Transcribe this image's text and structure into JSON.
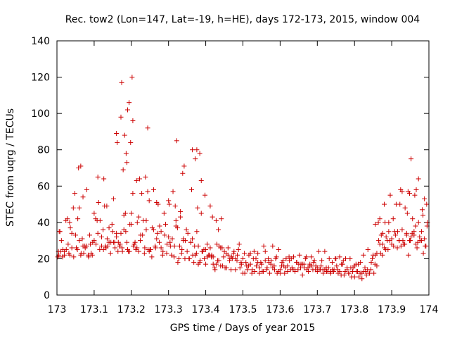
{
  "chart_data": {
    "type": "scatter",
    "title": "Rec. tow2 (Lon=147, Lat=-19, h=HE), days 172-173, 2015, window 004",
    "xlabel": "GPS time / Days of year 2015",
    "ylabel": "STEC from uqrg / TECUs",
    "xlim": [
      173,
      174
    ],
    "ylim": [
      0,
      140
    ],
    "xticks": [
      "173",
      "173.1",
      "173.2",
      "173.3",
      "173.4",
      "173.5",
      "173.6",
      "173.7",
      "173.8",
      "173.9",
      "174"
    ],
    "yticks": [
      "0",
      "20",
      "40",
      "60",
      "80",
      "100",
      "120",
      "140"
    ],
    "grid": false,
    "legend": "none",
    "marker": "plus",
    "color": "#cc0000",
    "x": [
      173.002,
      173.004,
      173.006,
      173.008,
      173.012,
      173.016,
      173.02,
      173.024,
      173.028,
      173.032,
      173.036,
      173.04,
      173.044,
      173.048,
      173.052,
      173.056,
      173.06,
      173.064,
      173.068,
      173.072,
      173.076,
      173.08,
      173.084,
      173.088,
      173.092,
      173.096,
      173.1,
      173.104,
      173.108,
      173.112,
      173.116,
      173.12,
      173.124,
      173.128,
      173.132,
      173.136,
      173.14,
      173.144,
      173.148,
      173.152,
      173.156,
      173.16,
      173.164,
      173.168,
      173.172,
      173.176,
      173.18,
      173.184,
      173.188,
      173.192,
      173.196,
      173.2,
      173.204,
      173.208,
      173.212,
      173.216,
      173.22,
      173.224,
      173.228,
      173.232,
      173.236,
      173.24,
      173.244,
      173.248,
      173.252,
      173.256,
      173.26,
      173.264,
      173.268,
      173.272,
      173.276,
      173.28,
      173.284,
      173.288,
      173.292,
      173.296,
      173.3,
      173.304,
      173.308,
      173.312,
      173.316,
      173.32,
      173.324,
      173.328,
      173.332,
      173.336,
      173.34,
      173.344,
      173.348,
      173.352,
      173.356,
      173.36,
      173.364,
      173.368,
      173.372,
      173.376,
      173.38,
      173.384,
      173.388,
      173.392,
      173.396,
      173.4,
      173.404,
      173.408,
      173.412,
      173.416,
      173.42,
      173.424,
      173.428,
      173.432,
      173.436,
      173.44,
      173.444,
      173.448,
      173.452,
      173.456,
      173.46,
      173.464,
      173.468,
      173.472,
      173.476,
      173.48,
      173.484,
      173.488,
      173.492,
      173.496,
      173.5,
      173.504,
      173.508,
      173.512,
      173.516,
      173.52,
      173.524,
      173.528,
      173.532,
      173.536,
      173.54,
      173.544,
      173.548,
      173.552,
      173.556,
      173.56,
      173.564,
      173.568,
      173.572,
      173.576,
      173.58,
      173.584,
      173.588,
      173.592,
      173.596,
      173.6,
      173.604,
      173.608,
      173.612,
      173.616,
      173.62,
      173.624,
      173.628,
      173.632,
      173.636,
      173.64,
      173.644,
      173.648,
      173.652,
      173.656,
      173.66,
      173.664,
      173.668,
      173.672,
      173.676,
      173.68,
      173.684,
      173.688,
      173.692,
      173.696,
      173.7,
      173.704,
      173.708,
      173.712,
      173.716,
      173.72,
      173.724,
      173.728,
      173.732,
      173.736,
      173.74,
      173.744,
      173.748,
      173.752,
      173.756,
      173.76,
      173.764,
      173.768,
      173.772,
      173.776,
      173.78,
      173.784,
      173.788,
      173.792,
      173.796,
      173.8,
      173.804,
      173.808,
      173.812,
      173.816,
      173.82,
      173.824,
      173.828,
      173.832,
      173.836,
      173.84,
      173.844,
      173.848,
      173.852,
      173.856,
      173.86,
      173.864,
      173.868,
      173.872,
      173.876,
      173.88,
      173.884,
      173.888,
      173.892,
      173.896,
      173.9,
      173.904,
      173.908,
      173.912,
      173.916,
      173.92,
      173.924,
      173.928,
      173.932,
      173.936,
      173.94,
      173.944,
      173.948,
      173.952,
      173.956,
      173.96,
      173.964,
      173.968,
      173.972,
      173.976,
      173.98,
      173.984,
      173.988,
      173.992,
      173.996,
      173.01,
      173.03,
      173.05,
      173.07,
      173.09,
      173.11,
      173.13,
      173.15,
      173.17,
      173.19,
      173.21,
      173.23,
      173.25,
      173.27,
      173.29,
      173.31,
      173.33,
      173.35,
      173.37,
      173.39,
      173.41,
      173.43,
      173.45,
      173.47,
      173.49,
      173.51,
      173.53,
      173.55,
      173.57,
      173.59,
      173.61,
      173.63,
      173.65,
      173.67,
      173.69,
      173.71,
      173.73,
      173.75,
      173.77,
      173.79,
      173.81,
      173.83,
      173.85,
      173.87,
      173.89,
      173.91,
      173.93,
      173.95,
      173.97,
      173.99,
      173.015,
      173.035,
      173.055,
      173.075,
      173.095,
      173.115,
      173.135,
      173.155,
      173.175,
      173.195,
      173.215,
      173.235,
      173.255,
      173.275,
      173.295,
      173.315,
      173.335,
      173.355,
      173.375,
      173.395,
      173.415,
      173.435,
      173.455,
      173.475,
      173.495,
      173.515,
      173.535,
      173.555,
      173.575,
      173.595,
      173.615,
      173.635,
      173.655,
      173.675,
      173.695,
      173.715,
      173.735,
      173.755,
      173.775,
      173.795,
      173.815,
      173.835,
      173.855,
      173.875,
      173.895,
      173.915,
      173.935,
      173.955,
      173.975,
      173.995,
      173.005,
      173.025,
      173.045,
      173.065,
      173.085,
      173.105,
      173.125,
      173.145,
      173.165,
      173.185,
      173.205,
      173.225,
      173.245,
      173.265,
      173.285,
      173.305,
      173.325,
      173.345,
      173.365,
      173.385,
      173.405,
      173.425,
      173.445,
      173.465,
      173.485,
      173.505,
      173.525,
      173.545,
      173.565,
      173.585,
      173.605,
      173.625,
      173.645,
      173.665,
      173.685,
      173.705,
      173.725,
      173.745,
      173.765,
      173.785,
      173.805,
      173.825,
      173.845,
      173.865,
      173.885,
      173.905,
      173.925,
      173.945,
      173.965,
      173.985,
      173.02,
      173.04,
      173.06,
      173.08,
      173.1,
      173.12,
      173.14,
      173.16,
      173.18,
      173.2,
      173.22,
      173.24,
      173.26,
      173.28,
      173.3,
      173.32,
      173.34,
      173.36,
      173.38,
      173.4,
      173.42,
      173.44,
      173.46,
      173.48,
      173.5,
      173.52,
      173.54,
      173.56,
      173.58,
      173.6,
      173.62,
      173.64,
      173.66,
      173.68,
      173.7,
      173.72,
      173.74,
      173.76,
      173.78,
      173.8,
      173.82,
      173.84,
      173.86,
      173.88,
      173.9,
      173.92,
      173.94,
      173.96,
      173.98,
      173.034,
      173.058,
      173.064,
      173.11,
      173.126,
      173.134,
      173.152,
      173.162,
      173.172,
      173.178,
      173.182,
      173.188,
      173.194,
      173.198,
      173.204,
      173.222,
      173.238,
      173.248,
      173.268,
      173.302,
      173.318,
      173.332,
      173.338,
      173.342,
      173.364,
      173.372,
      173.378,
      173.388,
      173.398,
      173.412,
      173.428,
      173.882,
      173.892,
      173.928,
      173.952,
      173.962,
      173.972,
      173.988,
      173.07,
      173.16,
      173.174,
      173.186,
      173.19,
      173.202,
      173.214,
      173.244,
      173.322,
      173.362,
      173.376,
      173.384,
      173.418,
      173.434,
      173.442,
      173.856,
      173.868,
      173.876,
      173.922,
      173.942,
      173.948,
      173.966,
      173.982,
      173.994
    ],
    "y": [
      21,
      24,
      35,
      35,
      30,
      25,
      22,
      41,
      42,
      23,
      37,
      34,
      48,
      56,
      26,
      42,
      48,
      22,
      31,
      23,
      26,
      58,
      22,
      33,
      23,
      29,
      45,
      42,
      41,
      51,
      41,
      27,
      36,
      49,
      26,
      27,
      29,
      23,
      39,
      29,
      26,
      32,
      24,
      27,
      34,
      24,
      44,
      45,
      29,
      24,
      39,
      39,
      56,
      28,
      25,
      40,
      24,
      30,
      56,
      41,
      26,
      36,
      57,
      24,
      25,
      37,
      58,
      27,
      31,
      50,
      38,
      26,
      22,
      45,
      39,
      28,
      52,
      29,
      22,
      57,
      27,
      41,
      37,
      20,
      46,
      25,
      30,
      20,
      36,
      34,
      20,
      29,
      31,
      18,
      22,
      35,
      17,
      18,
      45,
      24,
      20,
      17,
      28,
      22,
      26,
      22,
      17,
      15,
      17,
      19,
      27,
      16,
      26,
      21,
      15,
      15,
      26,
      19,
      14,
      20,
      24,
      14,
      19,
      25,
      15,
      17,
      12,
      23,
      18,
      14,
      22,
      17,
      12,
      20,
      13,
      16,
      23,
      12,
      18,
      13,
      27,
      24,
      14,
      20,
      12,
      19,
      27,
      16,
      20,
      12,
      25,
      14,
      16,
      19,
      12,
      20,
      16,
      21,
      14,
      15,
      21,
      13,
      18,
      14,
      22,
      17,
      11,
      17,
      20,
      14,
      13,
      16,
      21,
      14,
      19,
      16,
      13,
      24,
      14,
      19,
      12,
      24,
      15,
      13,
      20,
      12,
      18,
      13,
      20,
      16,
      12,
      21,
      11,
      17,
      11,
      20,
      14,
      12,
      20,
      10,
      15,
      10,
      17,
      13,
      10,
      18,
      9,
      22,
      15,
      11,
      25,
      12,
      14,
      20,
      12,
      22,
      23,
      40,
      28,
      33,
      34,
      50,
      25,
      30,
      40,
      55,
      28,
      42,
      35,
      50,
      35,
      30,
      58,
      36,
      28,
      48,
      34,
      57,
      30,
      32,
      42,
      33,
      38,
      26,
      40,
      30,
      35,
      44,
      31,
      27,
      40,
      24,
      28,
      33,
      27,
      28,
      34,
      27,
      35,
      28,
      25,
      29,
      33,
      25,
      34,
      33,
      31,
      27,
      24,
      27,
      24,
      22,
      28,
      24,
      21,
      28,
      16,
      24,
      17,
      18,
      21,
      16,
      20,
      17,
      21,
      18,
      16,
      15,
      20,
      19,
      15,
      17,
      13,
      22,
      23,
      25,
      33,
      30,
      30,
      29,
      27,
      21,
      22,
      25,
      27,
      22,
      25,
      31,
      29,
      26,
      24,
      26,
      23,
      21,
      29,
      23,
      21,
      23,
      20,
      23,
      25,
      21,
      19,
      23,
      23,
      18,
      16,
      20,
      13,
      17,
      13,
      15,
      14,
      15,
      15,
      14,
      14,
      13,
      14,
      13,
      13,
      12,
      14,
      17,
      22,
      30,
      26,
      28,
      34,
      32,
      38,
      22,
      25,
      21,
      23,
      21,
      28,
      25,
      29,
      29,
      35,
      27,
      33,
      25,
      26,
      24,
      27,
      18,
      30,
      22,
      19,
      21,
      14,
      16,
      20,
      22,
      12,
      14,
      15,
      15,
      14,
      18,
      19,
      18,
      15,
      16,
      14,
      13,
      14,
      17,
      12,
      13,
      13,
      18,
      30,
      32,
      27,
      27,
      22,
      28,
      23,
      24,
      26,
      30,
      27,
      30,
      32,
      37,
      34,
      36,
      45,
      43,
      41,
      36,
      35,
      32,
      38,
      31,
      29,
      27,
      25,
      21,
      26,
      22,
      20,
      20,
      23,
      18,
      19,
      15,
      12,
      13,
      14,
      17,
      17,
      15,
      14,
      14,
      13,
      15,
      16,
      12,
      12,
      16,
      26,
      31,
      30,
      33,
      35,
      30,
      40,
      70,
      71,
      65,
      64,
      49,
      53,
      84,
      98,
      69,
      88,
      73,
      106,
      84,
      96,
      64,
      65,
      52,
      51,
      50,
      49,
      43,
      67,
      71,
      80,
      75,
      48,
      63,
      55,
      49,
      41,
      40,
      35,
      57,
      75,
      55,
      64,
      53,
      54,
      89,
      117,
      78,
      102,
      120,
      63,
      92,
      85,
      58,
      80,
      78,
      43,
      36,
      42,
      39,
      42,
      28,
      50,
      45,
      56,
      58,
      47,
      50
    ]
  }
}
